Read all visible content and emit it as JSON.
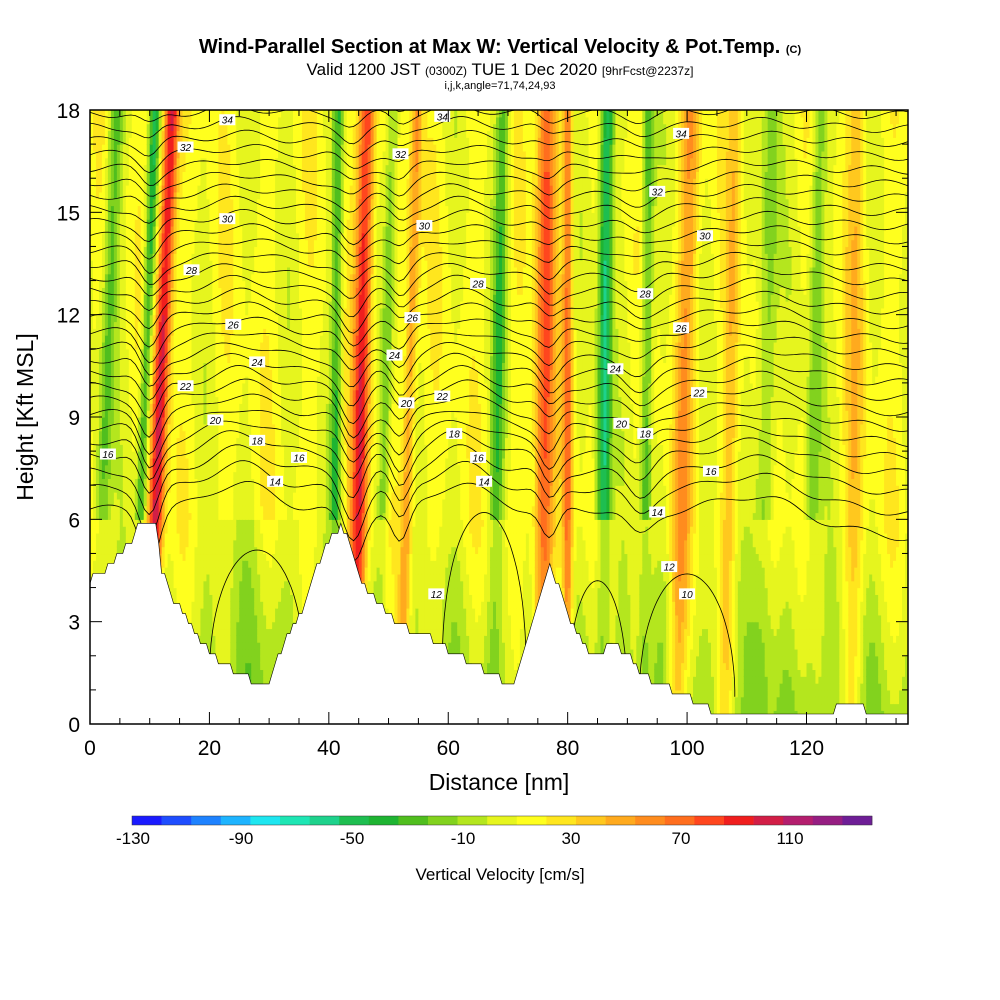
{
  "header": {
    "title": "Wind-Parallel Section at Max W: Vertical Velocity & Pot.Temp.",
    "title_mark": "(C)",
    "valid_prefix": "Valid 1200 JST",
    "valid_utc": "(0300Z)",
    "valid_date": "TUE 1 Dec 2020",
    "forecast": "[9hrFcst@2237z]",
    "grid_info": "i,j,k,angle=71,74,24,93"
  },
  "chart_data": {
    "type": "heatmap",
    "title": "Wind-Parallel Section at Max W: Vertical Velocity & Pot.Temp.",
    "xlabel": "Distance [nm]",
    "ylabel": "Height [Kft MSL]",
    "xlim": [
      0,
      137
    ],
    "ylim": [
      0,
      18
    ],
    "xticks": [
      "0",
      "20",
      "40",
      "60",
      "80",
      "100",
      "120"
    ],
    "yticks": [
      "0",
      "3",
      "6",
      "9",
      "12",
      "15",
      "18"
    ],
    "colorbar": {
      "title": "Vertical Velocity [cm/s]",
      "labels": [
        "-130",
        "-90",
        "-50",
        "-10",
        "30",
        "70",
        "110"
      ],
      "colors": [
        "#1a1aff",
        "#1e4dff",
        "#1e82ff",
        "#1eb4ff",
        "#1ee6f0",
        "#1ee6b4",
        "#1ed28c",
        "#1ebe50",
        "#1eb432",
        "#50be1e",
        "#82d21e",
        "#b4e61e",
        "#e6f51e",
        "#ffff1e",
        "#ffe61e",
        "#ffc81e",
        "#ffaa1e",
        "#ff8c1e",
        "#ff6e1e",
        "#ff461e",
        "#f01e1e",
        "#d21e46",
        "#b41e6e",
        "#961e82",
        "#6e1e96"
      ]
    },
    "theta_labels": [
      {
        "x": 23,
        "y": 17.7,
        "text": "34"
      },
      {
        "x": 59,
        "y": 17.8,
        "text": "34"
      },
      {
        "x": 99,
        "y": 17.3,
        "text": "34"
      },
      {
        "x": 16,
        "y": 16.9,
        "text": "32"
      },
      {
        "x": 52,
        "y": 16.7,
        "text": "32"
      },
      {
        "x": 95,
        "y": 15.6,
        "text": "32"
      },
      {
        "x": 23,
        "y": 14.8,
        "text": "30"
      },
      {
        "x": 56,
        "y": 14.6,
        "text": "30"
      },
      {
        "x": 103,
        "y": 14.3,
        "text": "30"
      },
      {
        "x": 17,
        "y": 13.3,
        "text": "28"
      },
      {
        "x": 65,
        "y": 12.9,
        "text": "28"
      },
      {
        "x": 93,
        "y": 12.6,
        "text": "28"
      },
      {
        "x": 24,
        "y": 11.7,
        "text": "26"
      },
      {
        "x": 54,
        "y": 11.9,
        "text": "26"
      },
      {
        "x": 99,
        "y": 11.6,
        "text": "26"
      },
      {
        "x": 28,
        "y": 10.6,
        "text": "24"
      },
      {
        "x": 51,
        "y": 10.8,
        "text": "24"
      },
      {
        "x": 88,
        "y": 10.4,
        "text": "24"
      },
      {
        "x": 16,
        "y": 9.9,
        "text": "22"
      },
      {
        "x": 59,
        "y": 9.6,
        "text": "22"
      },
      {
        "x": 102,
        "y": 9.7,
        "text": "22"
      },
      {
        "x": 21,
        "y": 8.9,
        "text": "20"
      },
      {
        "x": 53,
        "y": 9.4,
        "text": "20"
      },
      {
        "x": 89,
        "y": 8.8,
        "text": "20"
      },
      {
        "x": 28,
        "y": 8.3,
        "text": "18"
      },
      {
        "x": 61,
        "y": 8.5,
        "text": "18"
      },
      {
        "x": 93,
        "y": 8.5,
        "text": "18"
      },
      {
        "x": 3,
        "y": 7.9,
        "text": "16"
      },
      {
        "x": 35,
        "y": 7.8,
        "text": "16"
      },
      {
        "x": 65,
        "y": 7.8,
        "text": "16"
      },
      {
        "x": 104,
        "y": 7.4,
        "text": "16"
      },
      {
        "x": 31,
        "y": 7.1,
        "text": "14"
      },
      {
        "x": 66,
        "y": 7.1,
        "text": "14"
      },
      {
        "x": 95,
        "y": 6.2,
        "text": "14"
      },
      {
        "x": 97,
        "y": 4.6,
        "text": "12"
      },
      {
        "x": 58,
        "y": 3.8,
        "text": "12"
      },
      {
        "x": 100,
        "y": 3.8,
        "text": "10"
      }
    ],
    "terrain": [
      [
        0,
        4.2
      ],
      [
        3,
        4.6
      ],
      [
        5,
        5.0
      ],
      [
        7,
        5.4
      ],
      [
        8,
        5.8
      ],
      [
        11,
        5.8
      ],
      [
        12,
        4.5
      ],
      [
        14,
        3.6
      ],
      [
        16,
        3.2
      ],
      [
        18,
        2.6
      ],
      [
        20,
        2.1
      ],
      [
        22,
        1.8
      ],
      [
        24,
        1.6
      ],
      [
        26,
        1.5
      ],
      [
        28,
        1.1
      ],
      [
        30,
        1.2
      ],
      [
        32,
        2.2
      ],
      [
        34,
        2.8
      ],
      [
        36,
        3.4
      ],
      [
        38,
        4.6
      ],
      [
        40,
        5.4
      ],
      [
        42,
        5.8
      ],
      [
        43,
        5.6
      ],
      [
        44,
        5.0
      ],
      [
        45,
        4.4
      ],
      [
        47,
        3.8
      ],
      [
        50,
        3.2
      ],
      [
        53,
        2.8
      ],
      [
        56,
        2.6
      ],
      [
        58,
        2.4
      ],
      [
        60,
        2.2
      ],
      [
        62,
        2.0
      ],
      [
        64,
        1.8
      ],
      [
        66,
        1.6
      ],
      [
        68,
        1.4
      ],
      [
        70,
        1.1
      ],
      [
        71,
        1.3
      ],
      [
        73,
        2.4
      ],
      [
        75,
        3.6
      ],
      [
        77,
        4.6
      ],
      [
        78,
        4.2
      ],
      [
        79,
        3.8
      ],
      [
        80,
        3.2
      ],
      [
        82,
        2.5
      ],
      [
        84,
        2.0
      ],
      [
        86,
        2.2
      ],
      [
        88,
        2.3
      ],
      [
        90,
        2.1
      ],
      [
        92,
        1.6
      ],
      [
        94,
        1.3
      ],
      [
        96,
        1.1
      ],
      [
        99,
        0.9
      ],
      [
        102,
        0.6
      ],
      [
        104,
        0.4
      ],
      [
        106,
        0.3
      ],
      [
        109,
        0.4
      ],
      [
        112,
        0.3
      ],
      [
        118,
        0.3
      ],
      [
        124,
        0.3
      ],
      [
        126,
        0.6
      ],
      [
        129,
        0.5
      ],
      [
        131,
        0.3
      ],
      [
        137,
        0.3
      ]
    ]
  }
}
